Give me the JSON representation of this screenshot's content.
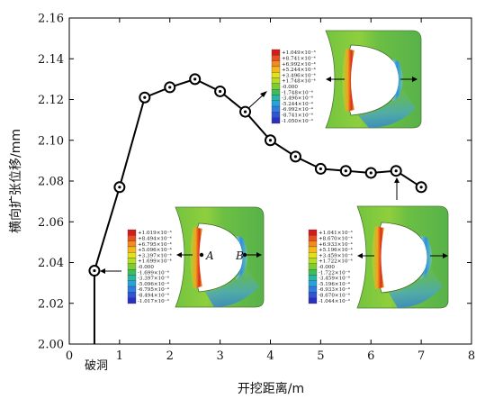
{
  "chart_data": {
    "type": "line",
    "title": "",
    "xlabel": "开挖距离/m",
    "ylabel": "横向扩张位移/mm",
    "xlim": [
      0,
      8
    ],
    "ylim": [
      2.0,
      2.16
    ],
    "x_ticks": [
      "0",
      "1",
      "2",
      "3",
      "4",
      "5",
      "6",
      "7",
      "8"
    ],
    "y_ticks": [
      "2.00",
      "2.02",
      "2.04",
      "2.06",
      "2.08",
      "2.10",
      "2.12",
      "2.14",
      "2.16"
    ],
    "x_annotation": "破洞",
    "series": [
      {
        "x": [
          0.5,
          1.0,
          1.5,
          2.0,
          2.5,
          3.0,
          3.5,
          4.0,
          4.5,
          5.0,
          5.5,
          6.0,
          6.5,
          7.0
        ],
        "y": [
          2.036,
          2.077,
          2.121,
          2.126,
          2.13,
          2.124,
          2.114,
          2.1,
          2.092,
          2.086,
          2.085,
          2.084,
          2.085,
          2.077
        ]
      }
    ],
    "insets": [
      {
        "legend": [
          "+1.049×10⁻³",
          "+8.741×10⁻⁴",
          "+6.992×10⁻⁴",
          "+5.244×10⁻⁴",
          "+3.496×10⁻⁴",
          "+1.748×10⁻⁴",
          "-0.000",
          "-1.748×10⁻⁴",
          "-3.496×10⁻⁴",
          "-5.244×10⁻⁴",
          "-6.992×10⁻⁴",
          "-8.741×10⁻⁴",
          "-1.050×10⁻³"
        ]
      },
      {
        "legend": [
          "+1.019×10⁻³",
          "+8.494×10⁻⁴",
          "+6.795×10⁻⁴",
          "+5.096×10⁻⁴",
          "+3.397×10⁻⁴",
          "+1.699×10⁻⁴",
          "-0.000",
          "-1.699×10⁻⁴",
          "-3.397×10⁻⁴",
          "-5.096×10⁻⁴",
          "-6.795×10⁻⁴",
          "-8.494×10⁻⁴",
          "-1.017×10⁻³"
        ],
        "point_labels": [
          "A",
          "B"
        ]
      },
      {
        "legend": [
          "+1.041×10⁻³",
          "+8.670×10⁻⁴",
          "+6.933×10⁻⁴",
          "+5.196×10⁻⁴",
          "+3.459×10⁻⁴",
          "+1.722×10⁻⁴",
          "-0.000",
          "-1.722×10⁻⁴",
          "-3.459×10⁻⁴",
          "-5.196×10⁻⁴",
          "-6.933×10⁻⁴",
          "-8.670×10⁻⁴",
          "-1.044×10⁻³"
        ]
      }
    ]
  },
  "colors": {
    "line": "#000000",
    "marker_fill": "#ffffff",
    "model_green": "#6fbf3a",
    "model_red": "#d62e1f",
    "model_blue": "#3a78d8"
  },
  "legend_palette": [
    "#d7191c",
    "#e8501f",
    "#f28a1e",
    "#f4b81d",
    "#e6df1c",
    "#b5dd24",
    "#7ccd2e",
    "#3fbd5a",
    "#27b7a5",
    "#2aa1d8",
    "#2f7de0",
    "#2d55d6",
    "#2b2fc2"
  ]
}
